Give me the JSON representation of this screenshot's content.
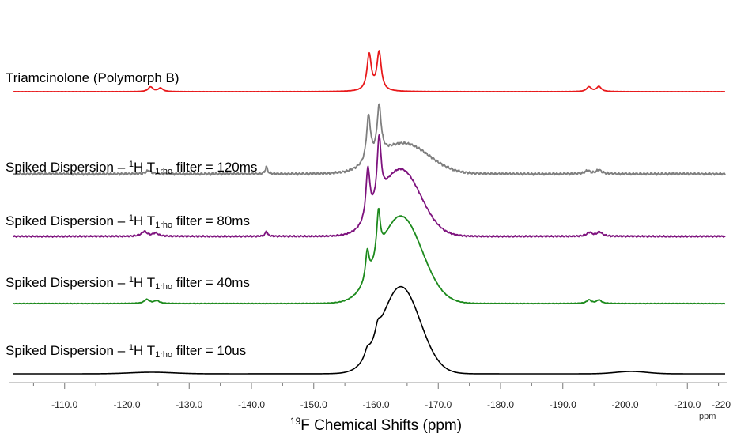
{
  "chart_data": {
    "type": "line",
    "title": "",
    "xlabel": "Chemical Shifts (ppm)",
    "xlabel_nucleus": "F",
    "xlabel_mass_number": "19",
    "x_unit": "ppm",
    "xlim": [
      -100.0,
      -220.0
    ],
    "x_reversed": true,
    "x_ticks": [
      "-110.0",
      "-120.0",
      "-130.0",
      "-140.0",
      "-150.0",
      "-160.0",
      "-170.0",
      "-180.0",
      "-190.0",
      "-200.0",
      "-210.0",
      "-220"
    ],
    "grid": false,
    "legend": "none",
    "series": [
      {
        "id": "polymorph-b",
        "label": "Triamcinolone (Polymorph B)",
        "color": "#e8191b",
        "noise": 0.15,
        "ridges": [],
        "peaks": [
          {
            "x": -158.9,
            "y": 46,
            "w": 0.42
          },
          {
            "x": -160.5,
            "y": 49,
            "w": 0.42
          },
          {
            "x": -123.8,
            "y": 6,
            "w": 0.45
          },
          {
            "x": -125.4,
            "y": 4.5,
            "w": 0.45
          },
          {
            "x": -194.2,
            "y": 6,
            "w": 0.45
          },
          {
            "x": -195.8,
            "y": 6.5,
            "w": 0.45
          }
        ]
      },
      {
        "id": "filter-120ms",
        "label_prefix": "Spiked Dispersion – ",
        "label_nucleus_mass": "1",
        "label_nucleus": "H T",
        "label_sub": "1rho",
        "label_suffix": " filter = 120ms",
        "color": "#7f7f7f",
        "noise": 1.8,
        "ridges": [
          {
            "x": -164.5,
            "y": 38,
            "w": 4.0
          }
        ],
        "peaks": [
          {
            "x": -158.8,
            "y": 58,
            "w": 0.4
          },
          {
            "x": -160.5,
            "y": 62,
            "w": 0.4
          },
          {
            "x": -142.4,
            "y": 9,
            "w": 0.22
          },
          {
            "x": -123.5,
            "y": 4,
            "w": 0.5
          },
          {
            "x": -194.0,
            "y": 4,
            "w": 0.5
          },
          {
            "x": -195.8,
            "y": 5,
            "w": 0.5
          }
        ]
      },
      {
        "id": "filter-80ms",
        "label_prefix": "Spiked Dispersion – ",
        "label_nucleus_mass": "1",
        "label_nucleus": "H T",
        "label_sub": "1rho",
        "label_suffix": " filter = 80ms",
        "color": "#7e137e",
        "noise": 1.1,
        "ridges": [
          {
            "x": -164.0,
            "y": 84,
            "w": 3.2
          }
        ],
        "peaks": [
          {
            "x": -158.7,
            "y": 64,
            "w": 0.38
          },
          {
            "x": -160.5,
            "y": 80,
            "w": 0.38
          },
          {
            "x": -142.4,
            "y": 7,
            "w": 0.2
          },
          {
            "x": -122.8,
            "y": 6,
            "w": 0.55
          },
          {
            "x": -124.6,
            "y": 4,
            "w": 0.55
          },
          {
            "x": -194.3,
            "y": 5,
            "w": 0.5
          },
          {
            "x": -195.9,
            "y": 5.5,
            "w": 0.5
          }
        ]
      },
      {
        "id": "filter-40ms",
        "label_prefix": "Spiked Dispersion – ",
        "label_nucleus_mass": "1",
        "label_nucleus": "H T",
        "label_sub": "1rho",
        "label_suffix": " filter = 40ms",
        "color": "#1d8a1d",
        "noise": 0.45,
        "ridges": [
          {
            "x": -164.0,
            "y": 110,
            "w": 3.4
          }
        ],
        "peaks": [
          {
            "x": -158.6,
            "y": 36,
            "w": 0.35
          },
          {
            "x": -160.4,
            "y": 56,
            "w": 0.35
          },
          {
            "x": -123.2,
            "y": 5,
            "w": 0.5
          },
          {
            "x": -124.8,
            "y": 3.5,
            "w": 0.5
          },
          {
            "x": -194.2,
            "y": 4.5,
            "w": 0.45
          },
          {
            "x": -195.8,
            "y": 4.5,
            "w": 0.45
          }
        ]
      },
      {
        "id": "filter-10us",
        "label_prefix": "Spiked Dispersion – ",
        "label_nucleus_mass": "1",
        "label_nucleus": "H T",
        "label_sub": "1rho",
        "label_suffix": " filter = 10us",
        "color": "#000000",
        "noise": 0,
        "ridges": [
          {
            "x": -164.0,
            "y": 110,
            "w": 3.1
          },
          {
            "x": -124.0,
            "y": 2,
            "w": 3.5
          },
          {
            "x": -201.0,
            "y": 3,
            "w": 2.5
          }
        ],
        "peaks": [
          {
            "x": -158.6,
            "y": 10,
            "w": 0.5
          },
          {
            "x": -160.3,
            "y": 14,
            "w": 0.5
          }
        ]
      }
    ]
  }
}
